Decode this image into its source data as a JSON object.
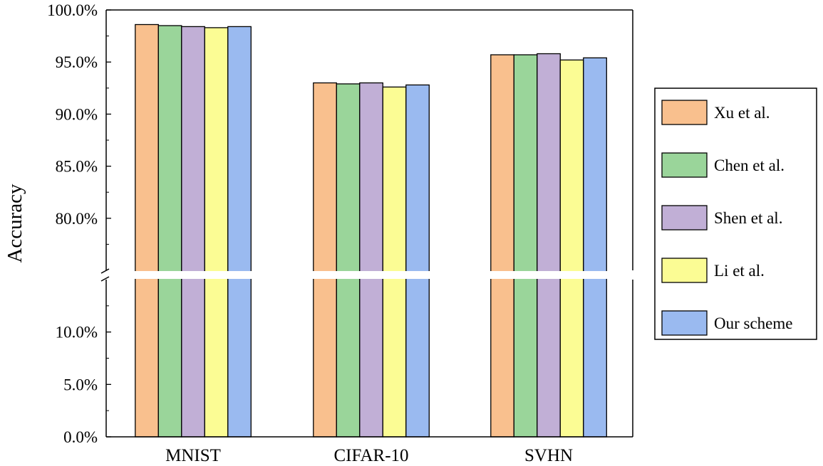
{
  "chart_data": {
    "type": "bar",
    "title": "",
    "xlabel": "",
    "ylabel": "Accuracy",
    "categories": [
      "MNIST",
      "CIFAR-10",
      "SVHN"
    ],
    "series": [
      {
        "name": "Xu et al.",
        "color": "#F9C08E",
        "values": [
          98.6,
          93.0,
          95.7
        ]
      },
      {
        "name": "Chen et al.",
        "color": "#9AD59A",
        "values": [
          98.5,
          92.9,
          95.7
        ]
      },
      {
        "name": "Shen et al.",
        "color": "#C1AFD6",
        "values": [
          98.4,
          93.0,
          95.8
        ]
      },
      {
        "name": "Li et al.",
        "color": "#FBFC94",
        "values": [
          98.3,
          92.6,
          95.2
        ]
      },
      {
        "name": "Our scheme",
        "color": "#9ABAF0",
        "values": [
          98.4,
          92.8,
          95.4
        ]
      }
    ],
    "axis_break": {
      "lower_range": [
        0,
        15
      ],
      "upper_range": [
        75,
        100
      ]
    },
    "yticks_lower": [
      0,
      5,
      10
    ],
    "yticks_upper": [
      80,
      85,
      90,
      95,
      100
    ],
    "ytick_labels_lower": [
      "0.0%",
      "5.0%",
      "10.0%"
    ],
    "ytick_labels_upper": [
      "80.0%",
      "85.0%",
      "90.0%",
      "95.0%",
      "100.0%"
    ],
    "legend_position": "right",
    "grid": false
  }
}
